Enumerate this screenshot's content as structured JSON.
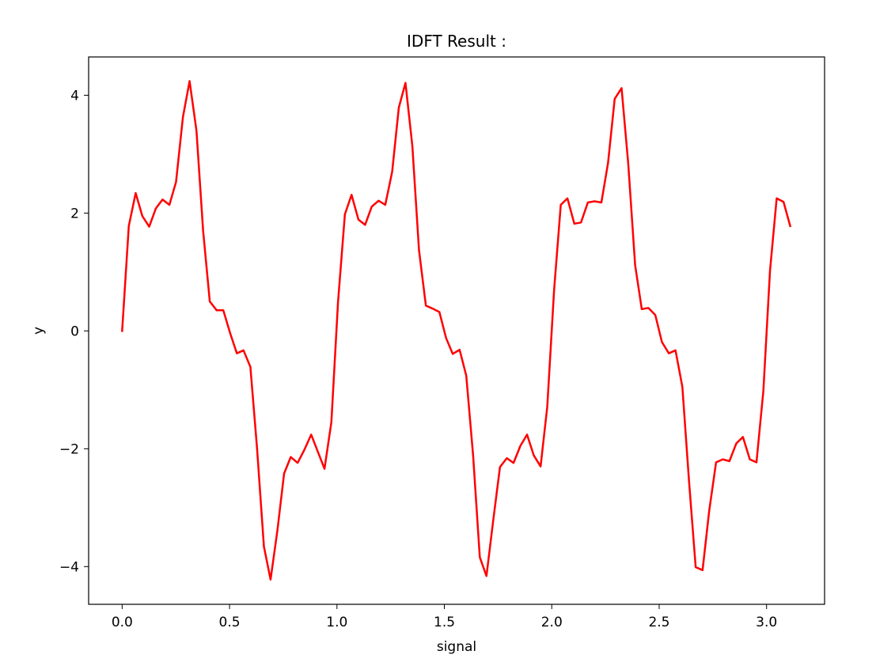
{
  "chart_data": {
    "type": "line",
    "title": "IDFT Result :",
    "xlabel": "signal",
    "ylabel": "y",
    "xlim": [
      -0.156,
      3.27
    ],
    "ylim": [
      -4.64,
      4.65
    ],
    "grid": false,
    "xticks": [
      0.0,
      0.5,
      1.0,
      1.5,
      2.0,
      2.5,
      3.0
    ],
    "xtick_labels": [
      "0.0",
      "0.5",
      "1.0",
      "1.5",
      "2.0",
      "2.5",
      "3.0"
    ],
    "yticks": [
      -4,
      -2,
      0,
      2,
      4
    ],
    "ytick_labels": [
      "−4",
      "−2",
      "0",
      "2",
      "4"
    ],
    "series": [
      {
        "color": "#ff0000",
        "x": [
          0.0,
          0.031,
          0.063,
          0.094,
          0.126,
          0.157,
          0.188,
          0.22,
          0.251,
          0.283,
          0.314,
          0.346,
          0.377,
          0.408,
          0.44,
          0.471,
          0.503,
          0.534,
          0.565,
          0.597,
          0.628,
          0.66,
          0.691,
          0.723,
          0.754,
          0.785,
          0.817,
          0.848,
          0.88,
          0.911,
          0.942,
          0.974,
          1.005,
          1.037,
          1.068,
          1.1,
          1.131,
          1.162,
          1.194,
          1.225,
          1.257,
          1.288,
          1.319,
          1.351,
          1.382,
          1.414,
          1.445,
          1.477,
          1.508,
          1.539,
          1.571,
          1.602,
          1.634,
          1.665,
          1.696,
          1.728,
          1.759,
          1.791,
          1.822,
          1.854,
          1.885,
          1.916,
          1.948,
          1.979,
          2.011,
          2.042,
          2.073,
          2.105,
          2.136,
          2.168,
          2.199,
          2.231,
          2.262,
          2.293,
          2.325,
          2.356,
          2.388,
          2.419,
          2.45,
          2.482,
          2.513,
          2.545,
          2.576,
          2.608,
          2.639,
          2.67,
          2.702,
          2.733,
          2.765,
          2.796,
          2.827,
          2.859,
          2.89,
          2.922,
          2.953,
          2.985,
          3.016,
          3.047,
          3.079,
          3.11
        ],
        "values": [
          0.0,
          1.78,
          2.34,
          1.95,
          1.77,
          2.08,
          2.23,
          2.14,
          2.53,
          3.63,
          4.24,
          3.4,
          1.7,
          0.5,
          0.35,
          0.35,
          -0.04,
          -0.38,
          -0.33,
          -0.61,
          -1.99,
          -3.66,
          -4.22,
          -3.38,
          -2.42,
          -2.14,
          -2.24,
          -2.02,
          -1.76,
          -2.05,
          -2.34,
          -1.55,
          0.49,
          1.98,
          2.31,
          1.89,
          1.8,
          2.11,
          2.21,
          2.14,
          2.7,
          3.79,
          4.21,
          3.14,
          1.37,
          0.43,
          0.38,
          0.32,
          -0.12,
          -0.39,
          -0.32,
          -0.76,
          -2.12,
          -3.84,
          -4.16,
          -3.2,
          -2.31,
          -2.16,
          -2.24,
          -1.95,
          -1.76,
          -2.11,
          -2.3,
          -1.29,
          0.7,
          2.14,
          2.25,
          1.82,
          1.84,
          2.18,
          2.2,
          2.18,
          2.85,
          3.94,
          4.12,
          2.84,
          1.12,
          0.37,
          0.39,
          0.27,
          -0.19,
          -0.38,
          -0.33,
          -0.95,
          -2.55,
          -4.01,
          -4.06,
          -3.05,
          -2.23,
          -2.18,
          -2.21,
          -1.91,
          -1.8,
          -2.18,
          -2.23,
          -1.02,
          1.02,
          2.25,
          2.19,
          1.78
        ]
      }
    ]
  }
}
